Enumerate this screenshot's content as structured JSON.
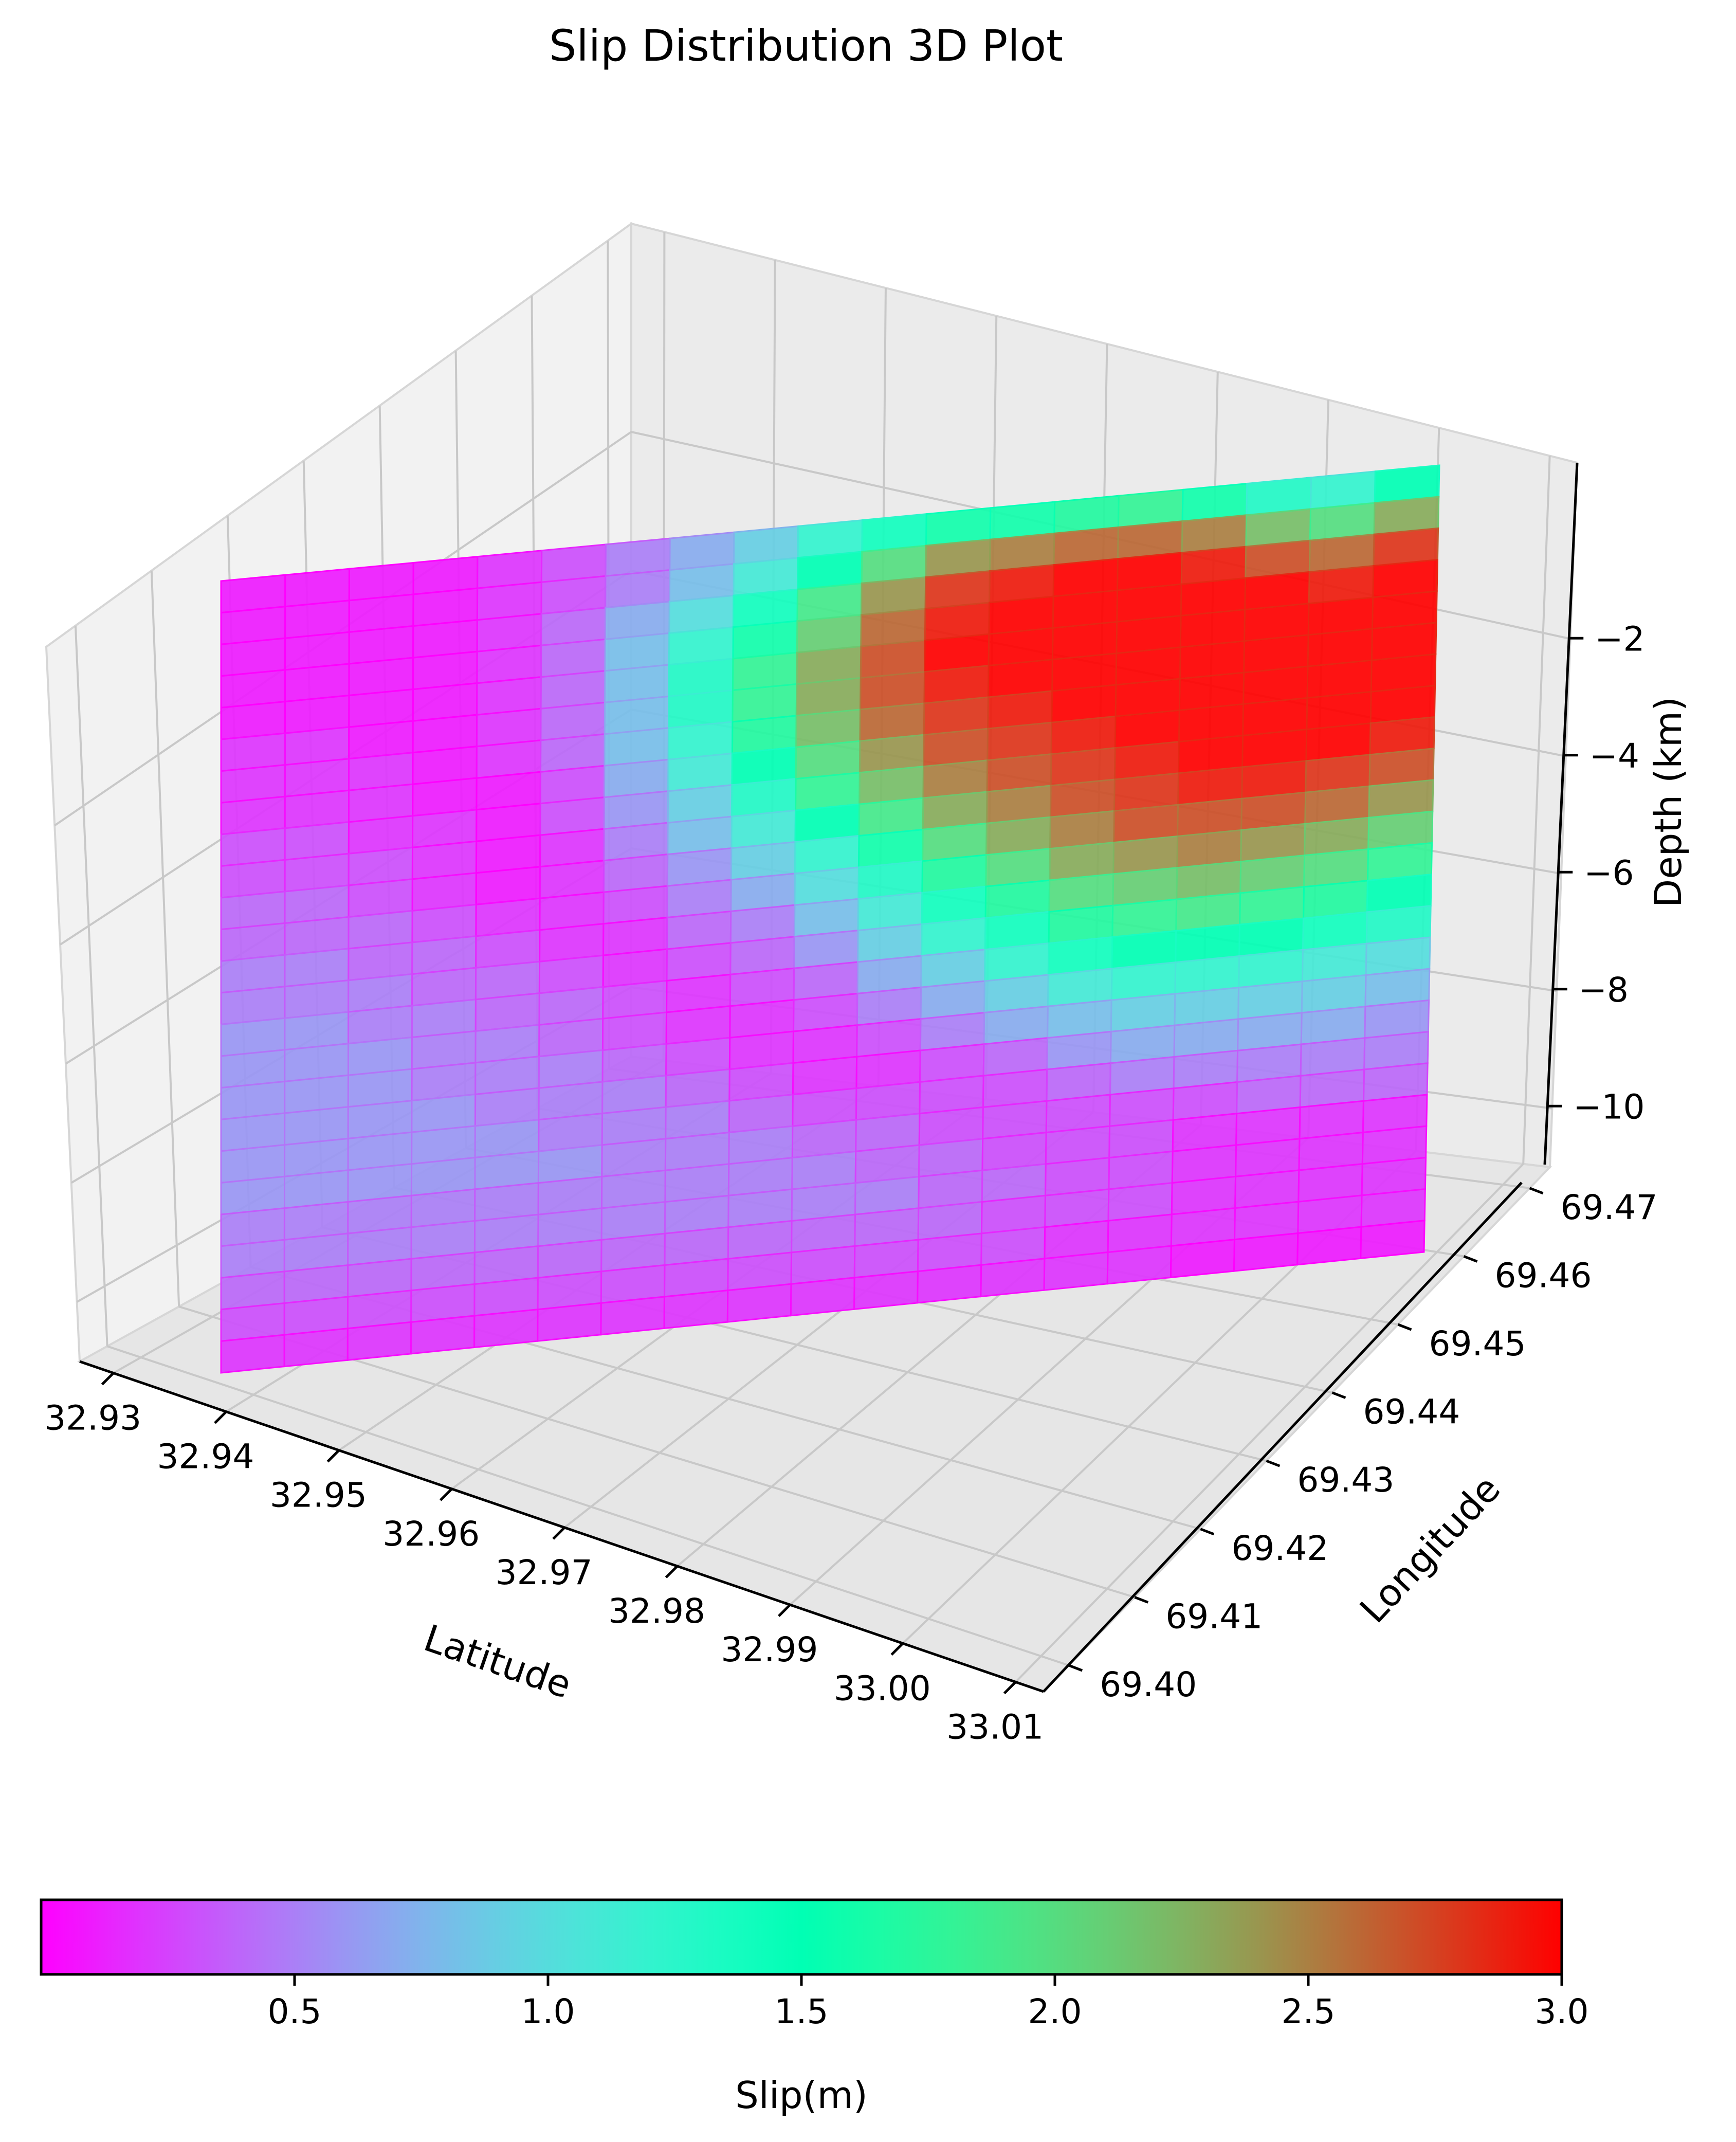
{
  "chart_data": {
    "type": "heatmap",
    "title": "Slip Distribution 3D Plot",
    "xlabel": "Latitude",
    "ylabel": "Longitude",
    "zlabel": "Depth (km)",
    "x_ticks": [
      "32.93",
      "32.94",
      "32.95",
      "32.96",
      "32.97",
      "32.98",
      "32.99",
      "33.00",
      "33.01"
    ],
    "y_ticks": [
      "69.40",
      "69.41",
      "69.42",
      "69.43",
      "69.44",
      "69.45",
      "69.46",
      "69.47"
    ],
    "z_ticks": [
      "−10",
      "−8",
      "−6",
      "−4",
      "−2"
    ],
    "z_tick_values": [
      -10,
      -8,
      -6,
      -4,
      -2
    ],
    "grid": true,
    "colormap": "rainbow",
    "colorbar": {
      "label": "Slip(m)",
      "min": 0.0,
      "max": 3.0,
      "ticks": [
        "0.5",
        "1.0",
        "1.5",
        "2.0",
        "2.5",
        "3.0"
      ],
      "tick_values": [
        0.5,
        1.0,
        1.5,
        2.0,
        2.5,
        3.0
      ],
      "orientation": "horizontal",
      "placement": "bottom"
    },
    "slip_grid": {
      "description_rows": "depth from shallow (top) to deep (bottom)",
      "values": [
        [
          0.1,
          0.1,
          0.1,
          0.1,
          0.2,
          0.3,
          0.5,
          0.7,
          0.9,
          1.2,
          1.4,
          1.6,
          1.6,
          1.7,
          1.8,
          1.6,
          1.3,
          1.2,
          1.5
        ],
        [
          0.1,
          0.1,
          0.1,
          0.1,
          0.2,
          0.3,
          0.5,
          0.8,
          1.1,
          1.5,
          2.0,
          2.4,
          2.5,
          2.6,
          2.6,
          2.5,
          2.2,
          2.0,
          2.3
        ],
        [
          0.1,
          0.1,
          0.1,
          0.1,
          0.2,
          0.4,
          0.7,
          1.0,
          1.4,
          1.9,
          2.4,
          2.8,
          2.9,
          3.0,
          3.0,
          2.9,
          2.7,
          2.6,
          2.8
        ],
        [
          0.1,
          0.1,
          0.1,
          0.1,
          0.2,
          0.4,
          0.8,
          1.2,
          1.6,
          2.1,
          2.6,
          2.9,
          3.0,
          3.0,
          3.0,
          3.0,
          3.0,
          2.9,
          3.0
        ],
        [
          0.1,
          0.1,
          0.1,
          0.1,
          0.2,
          0.4,
          0.8,
          1.3,
          1.8,
          2.3,
          2.7,
          3.0,
          3.0,
          3.0,
          3.0,
          3.0,
          3.0,
          3.0,
          3.0
        ],
        [
          0.2,
          0.2,
          0.1,
          0.1,
          0.2,
          0.4,
          0.8,
          1.3,
          1.8,
          2.3,
          2.7,
          2.9,
          3.0,
          3.0,
          3.0,
          3.0,
          3.0,
          3.0,
          3.0
        ],
        [
          0.2,
          0.2,
          0.2,
          0.1,
          0.2,
          0.4,
          0.8,
          1.2,
          1.7,
          2.2,
          2.6,
          2.8,
          2.9,
          3.0,
          3.0,
          3.0,
          3.0,
          3.0,
          3.0
        ],
        [
          0.2,
          0.2,
          0.2,
          0.1,
          0.1,
          0.3,
          0.7,
          1.1,
          1.5,
          2.0,
          2.4,
          2.7,
          2.8,
          2.9,
          3.0,
          3.0,
          3.0,
          3.0,
          3.0
        ],
        [
          0.3,
          0.3,
          0.2,
          0.2,
          0.1,
          0.3,
          0.6,
          0.9,
          1.3,
          1.8,
          2.2,
          2.5,
          2.7,
          2.8,
          2.9,
          3.0,
          3.0,
          3.0,
          2.9
        ],
        [
          0.3,
          0.3,
          0.3,
          0.2,
          0.1,
          0.2,
          0.5,
          0.8,
          1.1,
          1.5,
          1.9,
          2.3,
          2.5,
          2.7,
          2.8,
          2.9,
          2.9,
          2.8,
          2.7
        ],
        [
          0.4,
          0.4,
          0.3,
          0.2,
          0.1,
          0.2,
          0.4,
          0.6,
          0.9,
          1.2,
          1.6,
          2.0,
          2.3,
          2.5,
          2.7,
          2.7,
          2.7,
          2.6,
          2.4
        ],
        [
          0.4,
          0.4,
          0.4,
          0.3,
          0.2,
          0.2,
          0.3,
          0.5,
          0.7,
          1.0,
          1.3,
          1.7,
          2.0,
          2.3,
          2.4,
          2.5,
          2.4,
          2.3,
          2.1
        ],
        [
          0.5,
          0.5,
          0.4,
          0.4,
          0.3,
          0.2,
          0.2,
          0.4,
          0.5,
          0.8,
          1.1,
          1.4,
          1.7,
          2.0,
          2.1,
          2.2,
          2.1,
          2.0,
          1.8
        ],
        [
          0.5,
          0.5,
          0.5,
          0.4,
          0.4,
          0.3,
          0.2,
          0.3,
          0.4,
          0.6,
          0.9,
          1.2,
          1.4,
          1.7,
          1.8,
          1.9,
          1.8,
          1.7,
          1.5
        ],
        [
          0.6,
          0.6,
          0.5,
          0.5,
          0.4,
          0.4,
          0.3,
          0.2,
          0.3,
          0.4,
          0.7,
          0.9,
          1.2,
          1.4,
          1.5,
          1.5,
          1.5,
          1.4,
          1.3
        ],
        [
          0.6,
          0.6,
          0.6,
          0.5,
          0.5,
          0.4,
          0.3,
          0.2,
          0.2,
          0.3,
          0.5,
          0.7,
          0.9,
          1.1,
          1.2,
          1.2,
          1.2,
          1.1,
          1.0
        ],
        [
          0.6,
          0.6,
          0.6,
          0.5,
          0.5,
          0.5,
          0.4,
          0.3,
          0.2,
          0.2,
          0.3,
          0.5,
          0.7,
          0.8,
          0.9,
          0.9,
          0.9,
          0.9,
          0.8
        ],
        [
          0.6,
          0.6,
          0.6,
          0.6,
          0.5,
          0.5,
          0.5,
          0.4,
          0.3,
          0.2,
          0.2,
          0.3,
          0.4,
          0.6,
          0.7,
          0.7,
          0.7,
          0.7,
          0.6
        ],
        [
          0.6,
          0.6,
          0.6,
          0.6,
          0.6,
          0.5,
          0.5,
          0.5,
          0.4,
          0.3,
          0.3,
          0.3,
          0.3,
          0.4,
          0.5,
          0.5,
          0.5,
          0.5,
          0.5
        ],
        [
          0.6,
          0.6,
          0.6,
          0.6,
          0.6,
          0.6,
          0.5,
          0.5,
          0.5,
          0.4,
          0.4,
          0.3,
          0.3,
          0.3,
          0.3,
          0.3,
          0.4,
          0.4,
          0.4
        ],
        [
          0.5,
          0.5,
          0.5,
          0.5,
          0.5,
          0.5,
          0.5,
          0.5,
          0.5,
          0.5,
          0.4,
          0.4,
          0.3,
          0.3,
          0.3,
          0.2,
          0.2,
          0.2,
          0.2
        ],
        [
          0.5,
          0.5,
          0.5,
          0.5,
          0.5,
          0.5,
          0.5,
          0.5,
          0.5,
          0.5,
          0.5,
          0.4,
          0.4,
          0.3,
          0.3,
          0.2,
          0.2,
          0.2,
          0.2
        ],
        [
          0.4,
          0.4,
          0.4,
          0.4,
          0.4,
          0.4,
          0.4,
          0.4,
          0.4,
          0.4,
          0.4,
          0.4,
          0.3,
          0.3,
          0.3,
          0.2,
          0.2,
          0.2,
          0.2
        ],
        [
          0.3,
          0.3,
          0.3,
          0.3,
          0.3,
          0.3,
          0.3,
          0.3,
          0.3,
          0.3,
          0.3,
          0.3,
          0.3,
          0.2,
          0.2,
          0.2,
          0.2,
          0.2,
          0.2
        ],
        [
          0.2,
          0.2,
          0.2,
          0.2,
          0.2,
          0.2,
          0.2,
          0.2,
          0.2,
          0.2,
          0.2,
          0.2,
          0.2,
          0.2,
          0.2,
          0.1,
          0.1,
          0.1,
          0.1
        ]
      ]
    }
  }
}
